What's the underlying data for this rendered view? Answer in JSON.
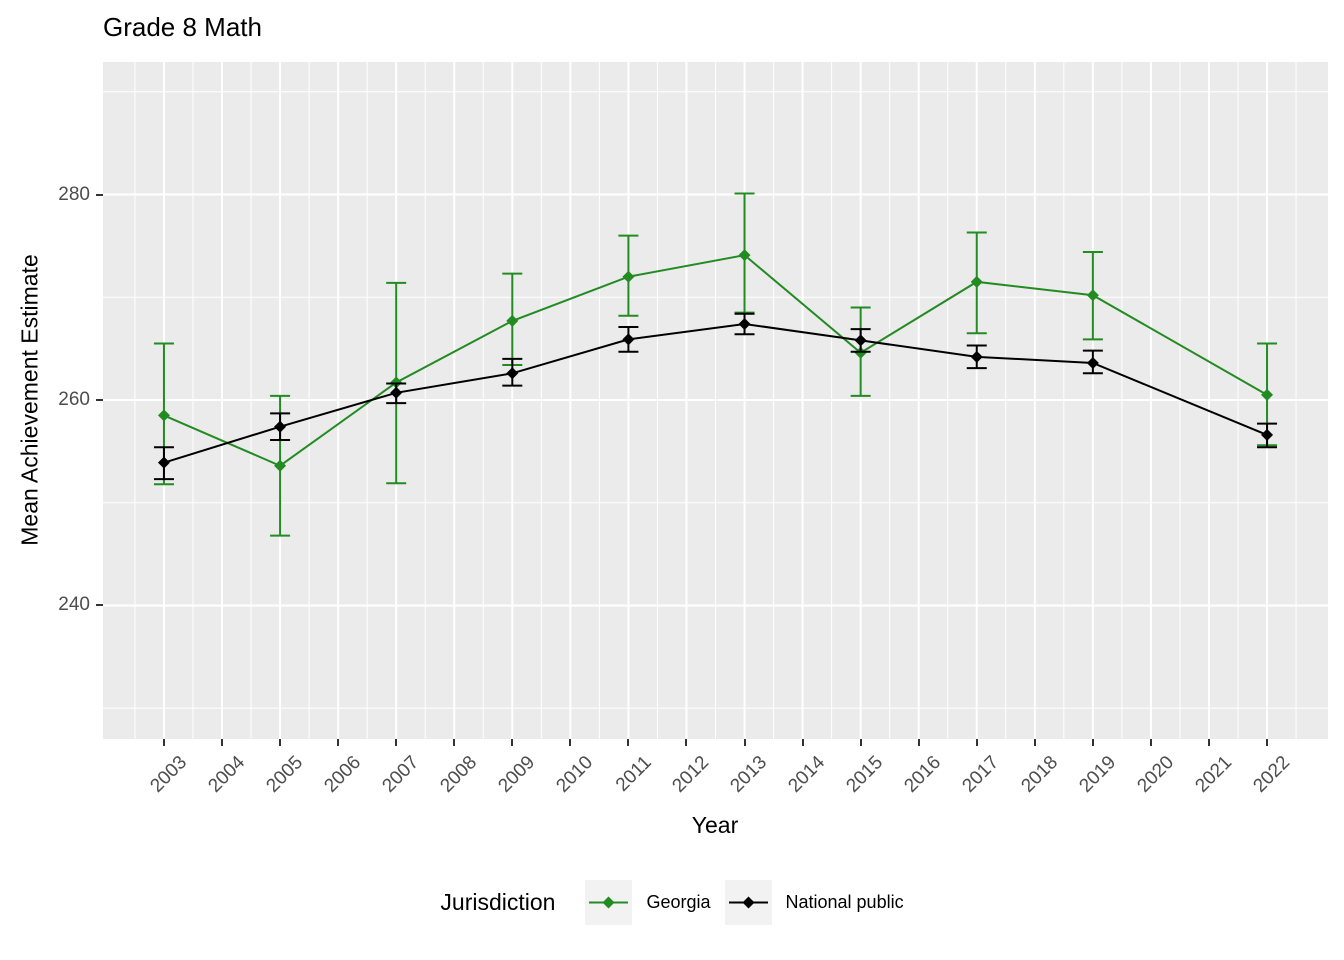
{
  "title": "Grade 8 Math",
  "axes": {
    "x_label": "Year",
    "y_label": "Mean Achievement Estimate"
  },
  "legend": {
    "title": "Jurisdiction",
    "items": [
      {
        "label": "Georgia",
        "color": "#228B22"
      },
      {
        "label": "National public",
        "color": "#000000"
      }
    ]
  },
  "colors": {
    "panel_bg": "#EBEBEB",
    "grid": "#FFFFFF",
    "axis_text": "#4D4D4D",
    "tick_mark": "#333333",
    "legend_key_bg": "#F2F2F2",
    "georgia_green": "#228B22",
    "national_black": "#000000"
  },
  "chart_data": {
    "type": "line",
    "title": "Grade 8 Math",
    "xlabel": "Year",
    "ylabel": "Mean Achievement Estimate",
    "x": [
      2003,
      2005,
      2007,
      2009,
      2011,
      2013,
      2015,
      2017,
      2019,
      2022
    ],
    "series": [
      {
        "name": "Georgia",
        "color": "#228B22",
        "values": [
          258.5,
          253.6,
          261.7,
          267.7,
          272.0,
          274.1,
          264.6,
          271.5,
          270.2,
          260.5
        ],
        "ci_low": [
          251.8,
          246.8,
          251.9,
          263.4,
          268.2,
          268.5,
          260.4,
          266.5,
          265.9,
          255.6
        ],
        "ci_high": [
          265.5,
          260.4,
          271.4,
          272.3,
          276.0,
          280.1,
          269.0,
          276.3,
          274.4,
          265.5
        ]
      },
      {
        "name": "National public",
        "color": "#000000",
        "values": [
          253.9,
          257.4,
          260.7,
          262.6,
          265.9,
          267.4,
          265.8,
          264.2,
          263.6,
          256.6
        ],
        "ci_low": [
          252.3,
          256.1,
          259.7,
          261.4,
          264.7,
          266.4,
          264.7,
          263.1,
          262.6,
          255.4
        ],
        "ci_high": [
          255.4,
          258.7,
          261.6,
          264.0,
          267.1,
          268.4,
          266.9,
          265.3,
          264.8,
          257.7
        ]
      }
    ],
    "x_ticks": [
      2003,
      2004,
      2005,
      2006,
      2007,
      2008,
      2009,
      2010,
      2011,
      2012,
      2013,
      2014,
      2015,
      2016,
      2017,
      2018,
      2019,
      2020,
      2021,
      2022
    ],
    "y_ticks": [
      240,
      260,
      280
    ],
    "xlim": [
      2001.95,
      2023.05
    ],
    "ylim": [
      227.0,
      292.9
    ],
    "grid": true,
    "error_bars": true,
    "legend_position": "bottom",
    "legend_title": "Jurisdiction"
  }
}
